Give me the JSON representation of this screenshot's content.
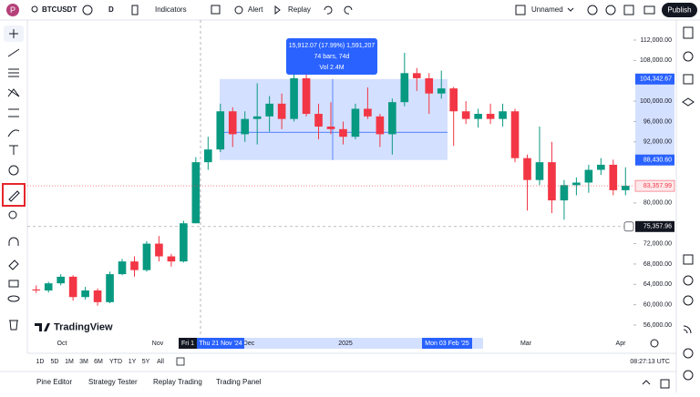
{
  "toolbar": {
    "avatar": "P",
    "symbol": "BTCUSDT",
    "interval": "D",
    "indicators": "Indicators",
    "alert": "Alert",
    "replay": "Replay",
    "layout_name": "Unnamed",
    "publish": "Publish"
  },
  "chart": {
    "price_ticks": [
      {
        "value": 112000,
        "label": "112,000.00"
      },
      {
        "value": 108000,
        "label": "108,000.00"
      },
      {
        "value": 100000,
        "label": "100,000.00"
      },
      {
        "value": 96000,
        "label": "96,000.00"
      },
      {
        "value": 92000,
        "label": "92,000.00"
      },
      {
        "value": 80000,
        "label": "80,000.00"
      },
      {
        "value": 72000,
        "label": "72,000.00"
      },
      {
        "value": 68000,
        "label": "68,000.00"
      },
      {
        "value": 64000,
        "label": "64,000.00"
      },
      {
        "value": 60000,
        "label": "60,000.00"
      },
      {
        "value": 56000,
        "label": "56,000.00"
      }
    ],
    "time_labels": [
      "Oct",
      "Nov",
      "Dec",
      "2025",
      "Mar",
      "Apr"
    ],
    "candles": {
      "open": [
        63000,
        62800,
        64200,
        65500,
        61500,
        62800,
        60500,
        66000,
        68500,
        66800,
        72000,
        69500,
        68500,
        76000,
        88000,
        90500,
        98000,
        93500,
        96500,
        97000,
        99500,
        96500,
        104500,
        97500,
        95000,
        94500,
        93000,
        98500,
        97000,
        93500,
        99800,
        105500,
        104500,
        101500,
        102500,
        98000,
        96500,
        97500,
        96500,
        98000,
        88800,
        84500,
        88000,
        80500,
        83500,
        84000,
        86500,
        87500,
        82500
      ],
      "high": [
        63800,
        64500,
        66000,
        65800,
        63500,
        63200,
        66500,
        69000,
        69500,
        72500,
        73500,
        70000,
        76500,
        89000,
        93000,
        99500,
        98800,
        98000,
        103500,
        101000,
        101500,
        107000,
        108300,
        99500,
        99800,
        96000,
        99500,
        102700,
        97500,
        100500,
        109500,
        106500,
        105500,
        106000,
        102800,
        100000,
        98500,
        99500,
        99500,
        98500,
        89500,
        95000,
        92000,
        84500,
        85000,
        87500,
        88800,
        88500,
        87000
      ],
      "low": [
        62300,
        62400,
        63800,
        60800,
        61000,
        59800,
        60300,
        65800,
        65500,
        66500,
        68500,
        67500,
        68300,
        76000,
        86500,
        90000,
        91000,
        92000,
        91500,
        94000,
        94500,
        96000,
        97000,
        92500,
        93500,
        91500,
        92500,
        96500,
        91000,
        89500,
        99000,
        102000,
        97500,
        100500,
        91200,
        95500,
        94800,
        95500,
        95000,
        88000,
        78500,
        83500,
        78000,
        76700,
        81500,
        82000,
        85500,
        81500,
        81500
      ],
      "close": [
        62800,
        64200,
        65500,
        61500,
        62800,
        60500,
        66000,
        68500,
        66800,
        72000,
        69500,
        68500,
        76000,
        88000,
        90500,
        98000,
        93500,
        96500,
        97000,
        99500,
        96500,
        104500,
        97500,
        95000,
        94500,
        93000,
        98500,
        97000,
        93500,
        99800,
        105500,
        104500,
        101500,
        102500,
        98000,
        96500,
        97500,
        96500,
        98000,
        88800,
        84500,
        88000,
        80500,
        83500,
        84000,
        86500,
        87500,
        82500,
        83357.99
      ]
    },
    "last_price": {
      "value": 83357.99,
      "label": "83,357.99"
    },
    "crosshair": {
      "price": {
        "value": 75357.96,
        "label": "75,357.96"
      },
      "time": "Fri 1"
    },
    "measure": {
      "top": {
        "value": 104342.67,
        "label": "104,342.67"
      },
      "bottom": {
        "value": 88430.6,
        "label": "88,430.60"
      },
      "start": "Thu 21 Nov '24",
      "end": "Mon 03 Feb '25",
      "lines": [
        "15,912.07 (17.99%) 1,591,207",
        "74 bars, 74d",
        "Vol 2.4M"
      ]
    },
    "logo": "TradingView"
  },
  "ranges": [
    "1D",
    "5D",
    "1M",
    "3M",
    "6M",
    "YTD",
    "1Y",
    "5Y",
    "All"
  ],
  "clock": "08:27:13 UTC",
  "tabs": [
    "Pine Editor",
    "Strategy Tester",
    "Replay Trading",
    "Trading Panel"
  ]
}
